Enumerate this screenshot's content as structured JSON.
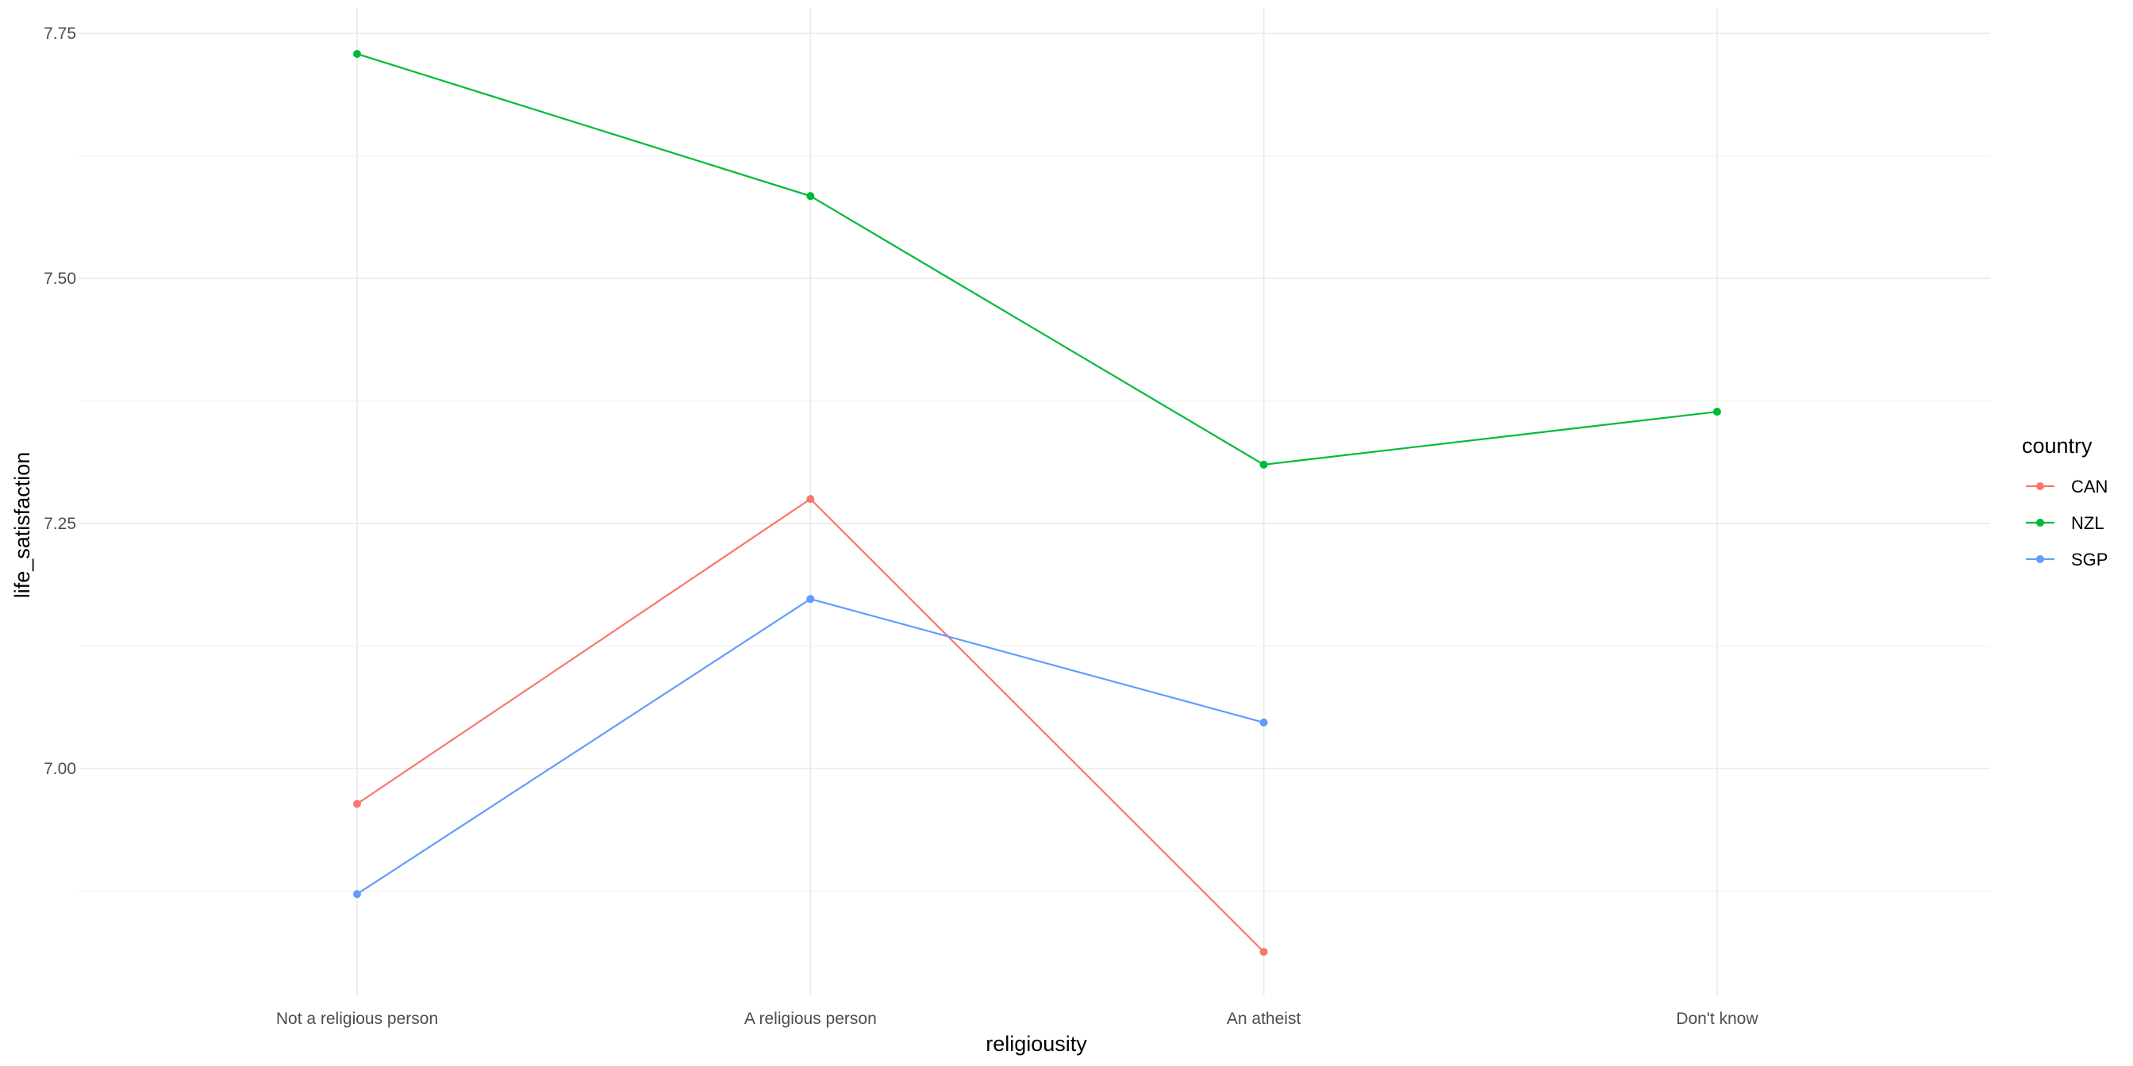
{
  "chart_data": {
    "type": "line",
    "xlabel": "religiousity",
    "ylabel": "life_satisfaction",
    "categories": [
      "Not a religious person",
      "A religious person",
      "An atheist",
      "Don't know"
    ],
    "ylim": [
      6.78,
      7.78
    ],
    "yticks": [
      7.0,
      7.25,
      7.5,
      7.75
    ],
    "ytick_labels": [
      "7.00",
      "7.25",
      "7.50",
      "7.75"
    ],
    "grid": true,
    "legend": {
      "title": "country",
      "position": "right"
    },
    "series": [
      {
        "name": "CAN",
        "color": "#F8766D",
        "values": [
          6.964,
          7.275,
          6.813,
          null
        ]
      },
      {
        "name": "NZL",
        "color": "#00BA38",
        "values": [
          7.729,
          7.584,
          7.31,
          7.364
        ]
      },
      {
        "name": "SGP",
        "color": "#619CFF",
        "values": [
          6.872,
          7.173,
          7.047,
          null
        ]
      }
    ]
  }
}
